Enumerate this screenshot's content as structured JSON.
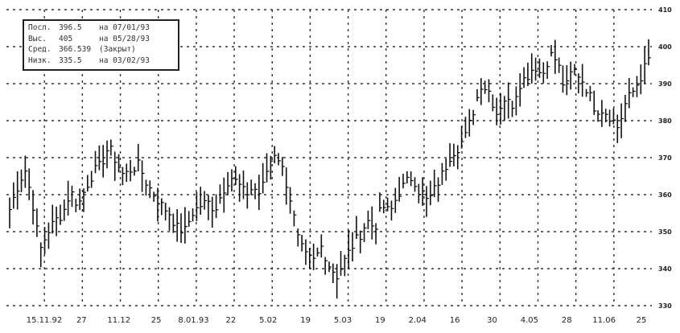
{
  "chart_data": {
    "type": "ohlc",
    "title": "",
    "xlabel": "",
    "ylabel": "",
    "ylim": [
      330,
      410
    ],
    "y_ticks": [
      330,
      340,
      350,
      360,
      370,
      380,
      390,
      400,
      410
    ],
    "y_axis_side": "right",
    "grid": true,
    "grid_style": "dashed",
    "x_tick_labels": [
      "15.11.92",
      "27",
      "11.12",
      "25",
      "8.01.93",
      "22",
      "5.02",
      "19",
      "5.03",
      "19",
      "2.04",
      "16",
      "30",
      "4.05",
      "28",
      "11.06",
      "25"
    ],
    "stats": [
      {
        "label": "Посл.",
        "value": "396.5",
        "note": "на 07/01/93"
      },
      {
        "label": "Выс.",
        "value": "405",
        "note": "на 05/28/93"
      },
      {
        "label": "Сред.",
        "value": "366.539",
        "note": "(Закрыт)"
      },
      {
        "label": "Низк.",
        "value": "335.5",
        "note": "на 03/02/93"
      }
    ],
    "anchors": [
      356,
      362,
      367,
      358,
      345,
      350,
      353,
      355,
      361,
      357,
      362,
      366,
      368,
      373,
      369,
      365,
      367,
      368,
      363,
      360,
      357,
      355,
      351,
      350,
      355,
      357,
      358,
      356,
      361,
      365,
      363,
      360,
      362,
      360,
      368,
      372,
      366,
      358,
      347,
      343,
      342,
      346,
      341,
      338,
      342,
      346,
      349,
      353,
      351,
      357,
      355,
      360,
      363,
      365,
      360,
      358,
      362,
      366,
      371,
      373,
      376,
      383,
      390,
      388,
      382,
      386,
      384,
      390,
      392,
      395,
      392,
      398,
      396,
      388,
      394,
      392,
      388,
      383,
      383,
      381,
      378,
      385,
      388,
      392,
      396.5
    ],
    "high": 405,
    "low": 335.5,
    "last": 396.5,
    "series": [
      {
        "values": []
      }
    ]
  }
}
